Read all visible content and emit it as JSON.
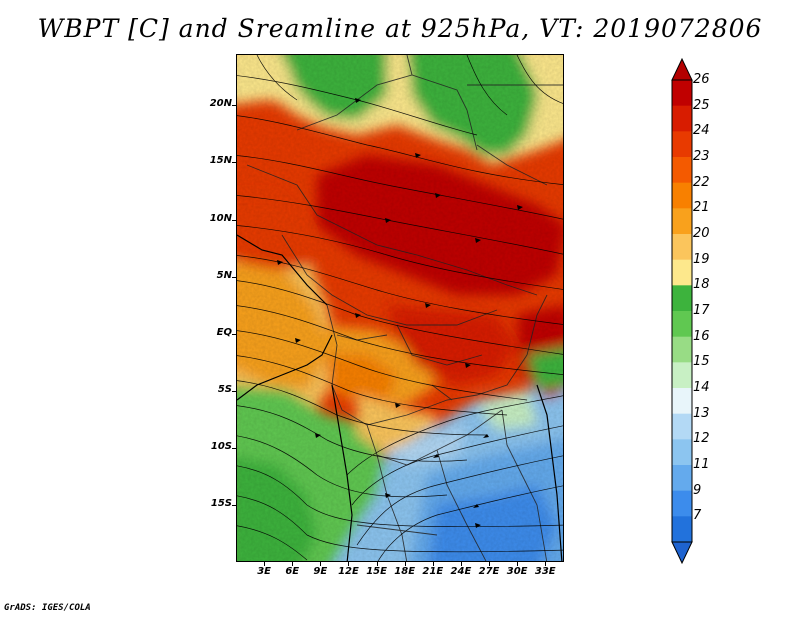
{
  "title": "WBPT [C] and Sreamline at 925hPa, VT: 2019072806",
  "credit": "GrADS: IGES/COLA",
  "axes": {
    "lat_labels": [
      "20N",
      "15N",
      "10N",
      "5N",
      "EQ",
      "5S",
      "10S",
      "15S"
    ],
    "lat_values": [
      20,
      15,
      10,
      5,
      0,
      -5,
      -10,
      -15
    ],
    "lon_labels": [
      "3E",
      "6E",
      "9E",
      "12E",
      "15E",
      "18E",
      "21E",
      "24E",
      "27E",
      "30E",
      "33E"
    ],
    "lon_values": [
      3,
      6,
      9,
      12,
      15,
      18,
      21,
      24,
      27,
      30,
      33
    ],
    "lat_range": [
      -20,
      24.5
    ],
    "lon_range": [
      0,
      35
    ]
  },
  "colorbar": {
    "labels": [
      "26",
      "25",
      "24",
      "23",
      "22",
      "21",
      "20",
      "19",
      "18",
      "17",
      "16",
      "15",
      "14",
      "13",
      "12",
      "11",
      "9",
      "7"
    ],
    "colors": [
      "#c00000",
      "#d81c00",
      "#e83a00",
      "#f45a00",
      "#f88000",
      "#f9a11c",
      "#fbc55c",
      "#fde88c",
      "#3db33d",
      "#60c851",
      "#98dc85",
      "#c8f0c4",
      "#e8f5fa",
      "#b3d9f5",
      "#8cc5f0",
      "#64aaed",
      "#3c8cec",
      "#2272dc"
    ],
    "top_color": "#b30000",
    "bottom_color": "#1e63d0"
  }
}
